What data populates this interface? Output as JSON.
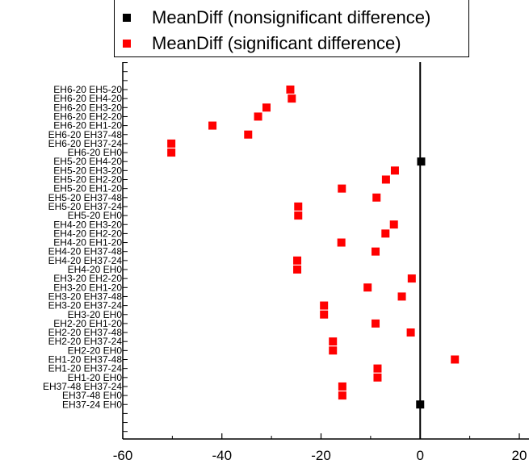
{
  "chart_data": {
    "type": "scatter",
    "title": "",
    "xlabel": "",
    "ylabel": "",
    "xlim": [
      -60,
      20
    ],
    "x_ticks": [
      "-60",
      "-40",
      "-20",
      "0",
      "20"
    ],
    "reference_line_x": 0,
    "legend_position": "top",
    "series": [
      {
        "name": "MeanDiff (nonsignificant difference)",
        "color": "#000000"
      },
      {
        "name": "MeanDiff (significant difference)",
        "color": "#ff0000"
      }
    ],
    "points": [
      {
        "label": "EH6-20  EH5-20",
        "x": -26.2,
        "significant": true
      },
      {
        "label": "EH6-20  EH4-20",
        "x": -25.9,
        "significant": true
      },
      {
        "label": "EH6-20  EH3-20",
        "x": -31.0,
        "significant": true
      },
      {
        "label": "EH6-20  EH2-20",
        "x": -32.7,
        "significant": true
      },
      {
        "label": "EH6-20  EH1-20",
        "x": -41.9,
        "significant": true
      },
      {
        "label": "EH6-20  EH37-48",
        "x": -34.7,
        "significant": true
      },
      {
        "label": "EH6-20  EH37-24",
        "x": -50.2,
        "significant": true
      },
      {
        "label": "EH6-20  EH0",
        "x": -50.2,
        "significant": true
      },
      {
        "label": "EH5-20  EH4-20",
        "x": 0.2,
        "significant": false
      },
      {
        "label": "EH5-20  EH3-20",
        "x": -5.1,
        "significant": true
      },
      {
        "label": "EH5-20  EH2-20",
        "x": -6.9,
        "significant": true
      },
      {
        "label": "EH5-20  EH1-20",
        "x": -15.8,
        "significant": true
      },
      {
        "label": "EH5-20  EH37-48",
        "x": -8.8,
        "significant": true
      },
      {
        "label": "EH5-20  EH37-24",
        "x": -24.6,
        "significant": true
      },
      {
        "label": "EH5-20  EH0",
        "x": -24.6,
        "significant": true
      },
      {
        "label": "EH4-20  EH3-20",
        "x": -5.3,
        "significant": true
      },
      {
        "label": "EH4-20  EH2-20",
        "x": -7.0,
        "significant": true
      },
      {
        "label": "EH4-20  EH1-20",
        "x": -15.9,
        "significant": true
      },
      {
        "label": "EH4-20  EH37-48",
        "x": -9.0,
        "significant": true
      },
      {
        "label": "EH4-20  EH37-24",
        "x": -24.8,
        "significant": true
      },
      {
        "label": "EH4-20  EH0",
        "x": -24.8,
        "significant": true
      },
      {
        "label": "EH3-20  EH2-20",
        "x": -1.7,
        "significant": true
      },
      {
        "label": "EH3-20  EH1-20",
        "x": -10.6,
        "significant": true
      },
      {
        "label": "EH3-20  EH37-48",
        "x": -3.7,
        "significant": true
      },
      {
        "label": "EH3-20  EH37-24",
        "x": -19.4,
        "significant": true
      },
      {
        "label": "EH3-20  EH0",
        "x": -19.4,
        "significant": true
      },
      {
        "label": "EH2-20  EH1-20",
        "x": -9.0,
        "significant": true
      },
      {
        "label": "EH2-20  EH37-48",
        "x": -1.9,
        "significant": true
      },
      {
        "label": "EH2-20  EH37-24",
        "x": -17.6,
        "significant": true
      },
      {
        "label": "EH2-20  EH0",
        "x": -17.6,
        "significant": true
      },
      {
        "label": "EH1-20  EH37-48",
        "x": 7.0,
        "significant": true
      },
      {
        "label": "EH1-20  EH37-24",
        "x": -8.6,
        "significant": true
      },
      {
        "label": "EH1-20  EH0",
        "x": -8.6,
        "significant": true
      },
      {
        "label": "EH37-48  EH37-24",
        "x": -15.7,
        "significant": true
      },
      {
        "label": "EH37-48  EH0",
        "x": -15.7,
        "significant": true
      },
      {
        "label": "EH37-24  EH0",
        "x": 0.0,
        "significant": false
      }
    ]
  }
}
